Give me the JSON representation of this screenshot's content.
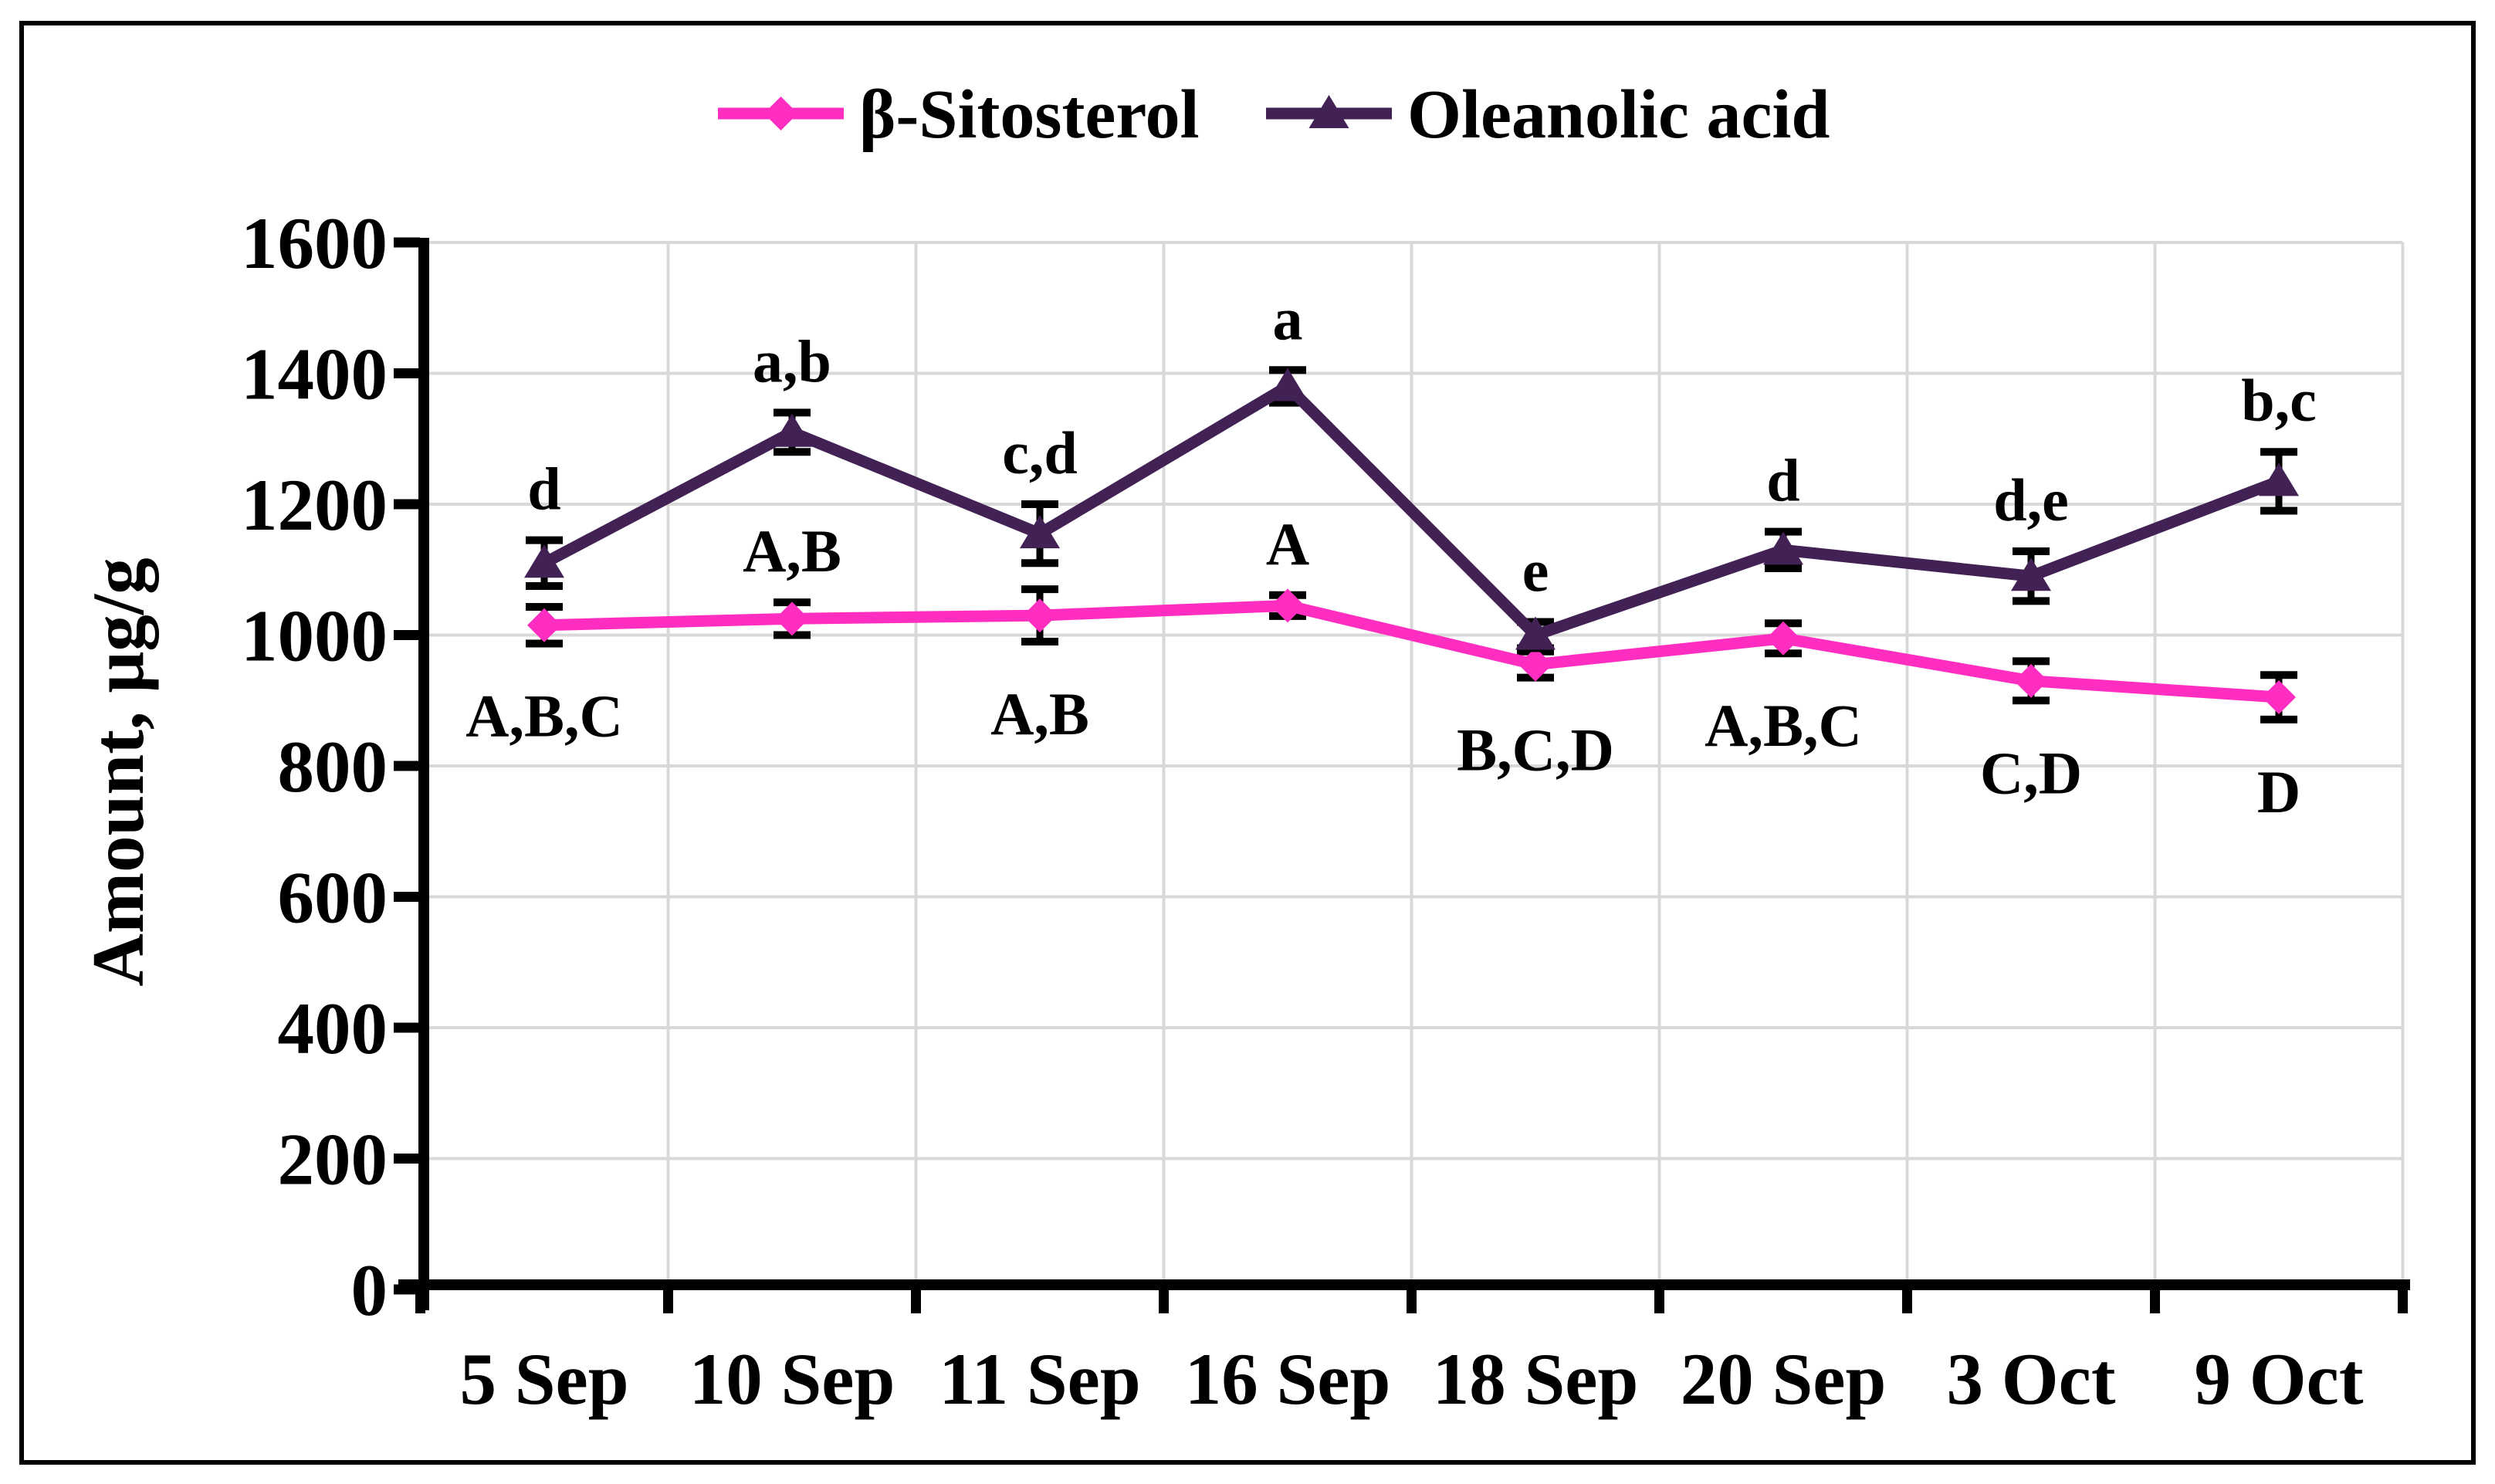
{
  "figure": {
    "background_color": "#ffffff",
    "border_color": "#000000",
    "grid_color": "#d8d8d8",
    "axis_color": "#000000",
    "annotation_color": "#000000"
  },
  "chart_data": {
    "type": "line",
    "title": "",
    "xlabel": "",
    "ylabel": "Amount, μg/g",
    "categories": [
      "5 Sep",
      "10 Sep",
      "11 Sep",
      "16 Sep",
      "18 Sep",
      "20 Sep",
      "3 Oct",
      "9 Oct"
    ],
    "ylim": [
      0,
      1600
    ],
    "ytick_step": 200,
    "yticks": [
      0,
      200,
      400,
      600,
      800,
      1000,
      1200,
      1400,
      1600
    ],
    "grid": true,
    "error_bars": true,
    "legend_position": "top",
    "series": [
      {
        "name": "β-Sitosterol",
        "color": "#ff2ec0",
        "marker": "diamond",
        "values": [
          1015,
          1025,
          1030,
          1045,
          955,
          995,
          930,
          905
        ],
        "errors": [
          28,
          25,
          40,
          16,
          20,
          23,
          30,
          34
        ],
        "point_labels": [
          {
            "text": "A,B,C",
            "position": "below"
          },
          {
            "text": "A,B",
            "position": "above"
          },
          {
            "text": "A,B",
            "position": "below"
          },
          {
            "text": "A",
            "position": "above"
          },
          {
            "text": "B,C,D",
            "position": "below"
          },
          {
            "text": "A,B,C",
            "position": "below"
          },
          {
            "text": "C,D",
            "position": "below"
          },
          {
            "text": "D",
            "position": "below"
          }
        ]
      },
      {
        "name": "Oleanolic acid",
        "color": "#422155",
        "marker": "triangle",
        "values": [
          1110,
          1310,
          1155,
          1380,
          1000,
          1130,
          1090,
          1235
        ],
        "errors": [
          35,
          30,
          45,
          25,
          20,
          28,
          38,
          45
        ],
        "point_labels": [
          {
            "text": "d",
            "position": "above"
          },
          {
            "text": "a,b",
            "position": "above"
          },
          {
            "text": "c,d",
            "position": "above"
          },
          {
            "text": "a",
            "position": "above"
          },
          {
            "text": "e",
            "position": "above"
          },
          {
            "text": "d",
            "position": "above"
          },
          {
            "text": "d,e",
            "position": "above"
          },
          {
            "text": "b,c",
            "position": "above"
          }
        ]
      }
    ]
  }
}
